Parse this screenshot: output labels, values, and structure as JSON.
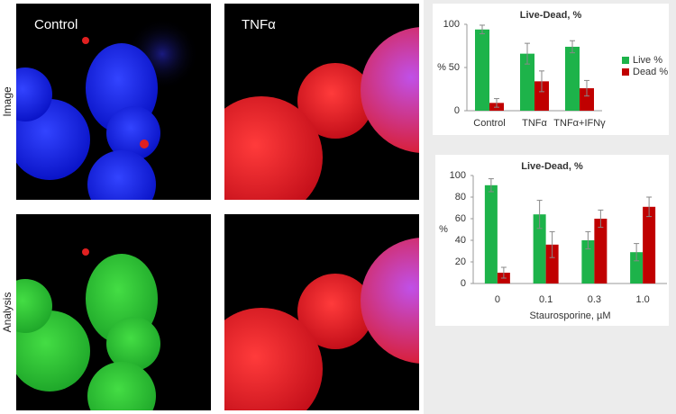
{
  "images": {
    "row_labels": [
      "Image",
      "Analysis"
    ],
    "column_labels": [
      "Control",
      "TNFα"
    ]
  },
  "chart_data": [
    {
      "type": "bar",
      "title": "Live-Dead, %",
      "y_label": "%",
      "categories": [
        "Control",
        "TNFα",
        "TNFα+IFNγ"
      ],
      "series": [
        {
          "name": "Live %",
          "color": "#1db34a",
          "values": [
            94,
            66,
            74
          ],
          "errors": [
            5,
            12,
            7
          ]
        },
        {
          "name": "Dead %",
          "color": "#c00000",
          "values": [
            9,
            34,
            26
          ],
          "errors": [
            5,
            12,
            9
          ]
        }
      ],
      "ylim": [
        0,
        100
      ],
      "yticks": [
        0,
        50,
        100
      ],
      "legend": "right"
    },
    {
      "type": "bar",
      "title": "Live-Dead, %",
      "y_label": "%",
      "x_label": "Staurosporine, µM",
      "categories": [
        "0",
        "0.1",
        "0.3",
        "1.0"
      ],
      "series": [
        {
          "color": "#1db34a",
          "values": [
            91,
            64,
            40,
            29
          ],
          "errors": [
            6,
            13,
            8,
            8
          ]
        },
        {
          "color": "#c00000",
          "values": [
            10,
            36,
            60,
            71
          ],
          "errors": [
            5,
            12,
            8,
            9
          ]
        }
      ],
      "ylim": [
        0,
        100
      ],
      "yticks": [
        0,
        20,
        40,
        60,
        80,
        100
      ]
    }
  ]
}
